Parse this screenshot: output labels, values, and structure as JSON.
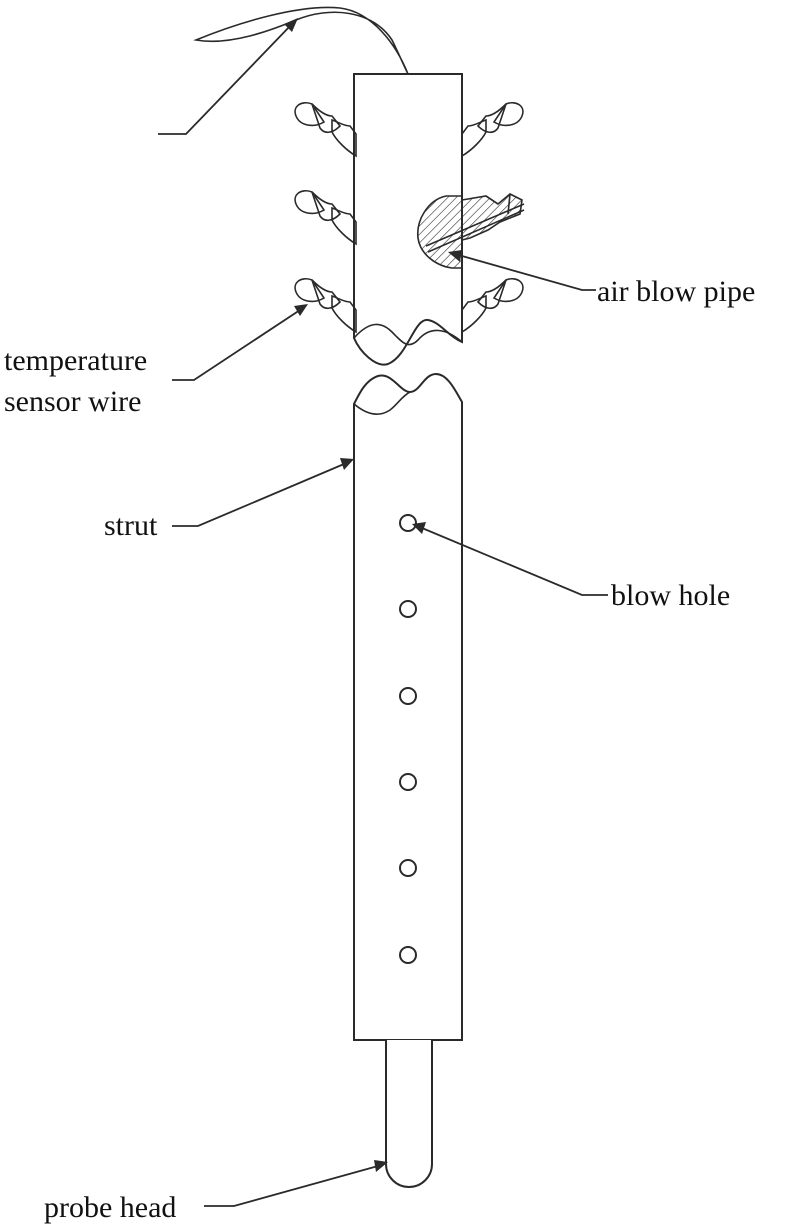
{
  "labels": {
    "air_blow_pipe": "air blow pipe",
    "temperature_sensor_wire_line1": "temperature",
    "temperature_sensor_wire_line2": "sensor wire",
    "strut": "strut",
    "blow_hole": "blow hole",
    "probe_head": "probe head"
  },
  "colors": {
    "line": "#2a2a2a",
    "text": "#111111",
    "background": "#ffffff"
  }
}
